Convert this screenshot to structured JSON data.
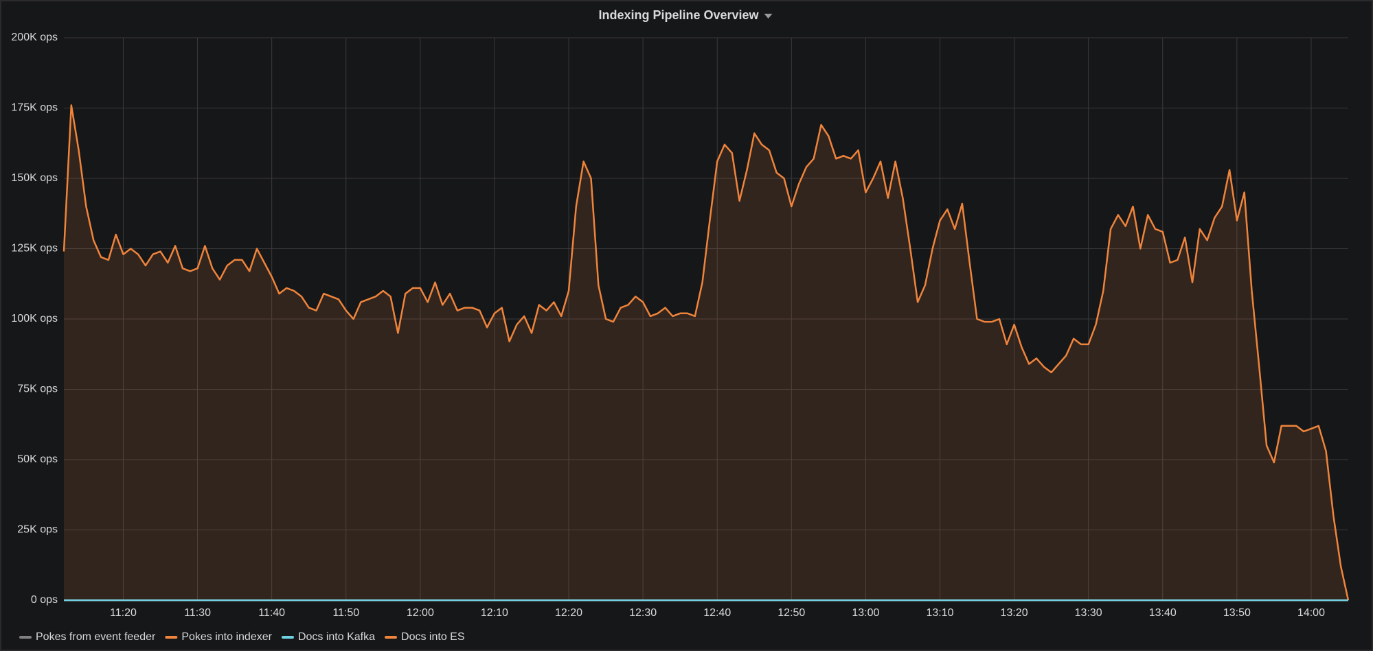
{
  "chart_data": {
    "type": "line",
    "title": "Indexing Pipeline Overview",
    "x": [
      "11:12",
      "11:13",
      "11:14",
      "11:15",
      "11:16",
      "11:17",
      "11:18",
      "11:19",
      "11:20",
      "11:21",
      "11:22",
      "11:23",
      "11:24",
      "11:25",
      "11:26",
      "11:27",
      "11:28",
      "11:29",
      "11:30",
      "11:31",
      "11:32",
      "11:33",
      "11:34",
      "11:35",
      "11:36",
      "11:37",
      "11:38",
      "11:39",
      "11:40",
      "11:41",
      "11:42",
      "11:43",
      "11:44",
      "11:45",
      "11:46",
      "11:47",
      "11:48",
      "11:49",
      "11:50",
      "11:51",
      "11:52",
      "11:53",
      "11:54",
      "11:55",
      "11:56",
      "11:57",
      "11:58",
      "11:59",
      "12:00",
      "12:01",
      "12:02",
      "12:03",
      "12:04",
      "12:05",
      "12:06",
      "12:07",
      "12:08",
      "12:09",
      "12:10",
      "12:11",
      "12:12",
      "12:13",
      "12:14",
      "12:15",
      "12:16",
      "12:17",
      "12:18",
      "12:19",
      "12:20",
      "12:21",
      "12:22",
      "12:23",
      "12:24",
      "12:25",
      "12:26",
      "12:27",
      "12:28",
      "12:29",
      "12:30",
      "12:31",
      "12:32",
      "12:33",
      "12:34",
      "12:35",
      "12:36",
      "12:37",
      "12:38",
      "12:39",
      "12:40",
      "12:41",
      "12:42",
      "12:43",
      "12:44",
      "12:45",
      "12:46",
      "12:47",
      "12:48",
      "12:49",
      "12:50",
      "12:51",
      "12:52",
      "12:53",
      "12:54",
      "12:55",
      "12:56",
      "12:57",
      "12:58",
      "12:59",
      "13:00",
      "13:01",
      "13:02",
      "13:03",
      "13:04",
      "13:05",
      "13:06",
      "13:07",
      "13:08",
      "13:09",
      "13:10",
      "13:11",
      "13:12",
      "13:13",
      "13:14",
      "13:15",
      "13:16",
      "13:17",
      "13:18",
      "13:19",
      "13:20",
      "13:21",
      "13:22",
      "13:23",
      "13:24",
      "13:25",
      "13:26",
      "13:27",
      "13:28",
      "13:29",
      "13:30",
      "13:31",
      "13:32",
      "13:33",
      "13:34",
      "13:35",
      "13:36",
      "13:37",
      "13:38",
      "13:39",
      "13:40",
      "13:41",
      "13:42",
      "13:43",
      "13:44",
      "13:45",
      "13:46",
      "13:47",
      "13:48",
      "13:49",
      "13:50",
      "13:51",
      "13:52",
      "13:53",
      "13:54",
      "13:55",
      "13:56",
      "13:57",
      "13:58",
      "13:59",
      "14:00",
      "14:01",
      "14:02",
      "14:03",
      "14:04",
      "14:05"
    ],
    "series": [
      {
        "name": "Pokes from event feeder",
        "color": "#808080",
        "values": [
          0,
          0,
          0,
          0,
          0,
          0,
          0,
          0,
          0,
          0,
          0,
          0,
          0,
          0,
          0,
          0,
          0,
          0,
          0,
          0,
          0,
          0,
          0,
          0,
          0,
          0,
          0,
          0,
          0,
          0,
          0,
          0,
          0,
          0,
          0,
          0,
          0,
          0,
          0,
          0,
          0,
          0,
          0,
          0,
          0,
          0,
          0,
          0,
          0,
          0,
          0,
          0,
          0,
          0,
          0,
          0,
          0,
          0,
          0,
          0,
          0,
          0,
          0,
          0,
          0,
          0,
          0,
          0,
          0,
          0,
          0,
          0,
          0,
          0,
          0,
          0,
          0,
          0,
          0,
          0,
          0,
          0,
          0,
          0,
          0,
          0,
          0,
          0,
          0,
          0,
          0,
          0,
          0,
          0,
          0,
          0,
          0,
          0,
          0,
          0,
          0,
          0,
          0,
          0,
          0,
          0,
          0,
          0,
          0,
          0,
          0,
          0,
          0,
          0,
          0,
          0,
          0,
          0,
          0,
          0,
          0,
          0,
          0,
          0,
          0,
          0,
          0,
          0,
          0,
          0,
          0,
          0,
          0,
          0,
          0,
          0,
          0,
          0,
          0,
          0,
          0,
          0,
          0,
          0,
          0,
          0,
          0,
          0,
          0,
          0,
          0,
          0,
          0,
          0,
          0,
          0,
          0,
          0,
          0,
          0,
          0,
          0,
          0,
          0,
          0,
          0,
          0,
          0,
          0,
          0,
          0,
          0,
          0,
          0
        ]
      },
      {
        "name": "Pokes into indexer",
        "color": "#ef843c",
        "values": [
          124000,
          176000,
          160000,
          140000,
          128000,
          122000,
          121000,
          130000,
          123000,
          125000,
          123000,
          119000,
          123000,
          124000,
          120000,
          126000,
          118000,
          117000,
          118000,
          126000,
          118000,
          114000,
          119000,
          121000,
          121000,
          117000,
          125000,
          120000,
          115000,
          109000,
          111000,
          110000,
          108000,
          104000,
          103000,
          109000,
          108000,
          107000,
          103000,
          100000,
          106000,
          107000,
          108000,
          110000,
          108000,
          95000,
          109000,
          111000,
          111000,
          106000,
          113000,
          105000,
          109000,
          103000,
          104000,
          104000,
          103000,
          97000,
          102000,
          104000,
          92000,
          98000,
          101000,
          95000,
          105000,
          103000,
          106000,
          101000,
          110000,
          140000,
          156000,
          150000,
          112000,
          100000,
          99000,
          104000,
          105000,
          108000,
          106000,
          101000,
          102000,
          104000,
          101000,
          102000,
          102000,
          101000,
          113000,
          135000,
          156000,
          162000,
          159000,
          142000,
          153000,
          166000,
          162000,
          160000,
          152000,
          150000,
          140000,
          148000,
          154000,
          157000,
          169000,
          165000,
          157000,
          158000,
          157000,
          160000,
          145000,
          150000,
          156000,
          143000,
          156000,
          143000,
          125000,
          106000,
          112000,
          125000,
          135000,
          139000,
          132000,
          141000,
          120000,
          100000,
          99000,
          99000,
          100000,
          91000,
          98000,
          90000,
          84000,
          86000,
          83000,
          81000,
          84000,
          87000,
          93000,
          91000,
          91000,
          98000,
          110000,
          132000,
          137000,
          133000,
          140000,
          125000,
          137000,
          132000,
          131000,
          120000,
          121000,
          129000,
          113000,
          132000,
          128000,
          136000,
          140000,
          153000,
          135000,
          145000,
          110000,
          83000,
          55000,
          49000,
          62000,
          62000,
          62000,
          60000,
          61000,
          62000,
          53000,
          30000,
          12000,
          0
        ]
      },
      {
        "name": "Docs into Kafka",
        "color": "#6ed0e0",
        "values": [
          0,
          0,
          0,
          0,
          0,
          0,
          0,
          0,
          0,
          0,
          0,
          0,
          0,
          0,
          0,
          0,
          0,
          0,
          0,
          0,
          0,
          0,
          0,
          0,
          0,
          0,
          0,
          0,
          0,
          0,
          0,
          0,
          0,
          0,
          0,
          0,
          0,
          0,
          0,
          0,
          0,
          0,
          0,
          0,
          0,
          0,
          0,
          0,
          0,
          0,
          0,
          0,
          0,
          0,
          0,
          0,
          0,
          0,
          0,
          0,
          0,
          0,
          0,
          0,
          0,
          0,
          0,
          0,
          0,
          0,
          0,
          0,
          0,
          0,
          0,
          0,
          0,
          0,
          0,
          0,
          0,
          0,
          0,
          0,
          0,
          0,
          0,
          0,
          0,
          0,
          0,
          0,
          0,
          0,
          0,
          0,
          0,
          0,
          0,
          0,
          0,
          0,
          0,
          0,
          0,
          0,
          0,
          0,
          0,
          0,
          0,
          0,
          0,
          0,
          0,
          0,
          0,
          0,
          0,
          0,
          0,
          0,
          0,
          0,
          0,
          0,
          0,
          0,
          0,
          0,
          0,
          0,
          0,
          0,
          0,
          0,
          0,
          0,
          0,
          0,
          0,
          0,
          0,
          0,
          0,
          0,
          0,
          0,
          0,
          0,
          0,
          0,
          0,
          0,
          0,
          0,
          0,
          0,
          0,
          0,
          0,
          0,
          0,
          0,
          0,
          0,
          0,
          0,
          0,
          0,
          0,
          0,
          0,
          0
        ]
      },
      {
        "name": "Docs into ES",
        "color": "#ef843c",
        "values": [
          0,
          0,
          0,
          0,
          0,
          0,
          0,
          0,
          0,
          0,
          0,
          0,
          0,
          0,
          0,
          0,
          0,
          0,
          0,
          0,
          0,
          0,
          0,
          0,
          0,
          0,
          0,
          0,
          0,
          0,
          0,
          0,
          0,
          0,
          0,
          0,
          0,
          0,
          0,
          0,
          0,
          0,
          0,
          0,
          0,
          0,
          0,
          0,
          0,
          0,
          0,
          0,
          0,
          0,
          0,
          0,
          0,
          0,
          0,
          0,
          0,
          0,
          0,
          0,
          0,
          0,
          0,
          0,
          0,
          0,
          0,
          0,
          0,
          0,
          0,
          0,
          0,
          0,
          0,
          0,
          0,
          0,
          0,
          0,
          0,
          0,
          0,
          0,
          0,
          0,
          0,
          0,
          0,
          0,
          0,
          0,
          0,
          0,
          0,
          0,
          0,
          0,
          0,
          0,
          0,
          0,
          0,
          0,
          0,
          0,
          0,
          0,
          0,
          0,
          0,
          0,
          0,
          0,
          0,
          0,
          0,
          0,
          0,
          0,
          0,
          0,
          0,
          0,
          0,
          0,
          0,
          0,
          0,
          0,
          0,
          0,
          0,
          0,
          0,
          0,
          0,
          0,
          0,
          0,
          0,
          0,
          0,
          0,
          0,
          0,
          0,
          0,
          0,
          0,
          0,
          0,
          0,
          0,
          0,
          0,
          0,
          0,
          0,
          0,
          0,
          0,
          0,
          0,
          0,
          0,
          0,
          0,
          0,
          0
        ]
      }
    ],
    "xlim": [
      "11:12",
      "14:05"
    ],
    "xticks": [
      "11:20",
      "11:30",
      "11:40",
      "11:50",
      "12:00",
      "12:10",
      "12:20",
      "12:30",
      "12:40",
      "12:50",
      "13:00",
      "13:10",
      "13:20",
      "13:30",
      "13:40",
      "13:50",
      "14:00"
    ],
    "ylim": [
      0,
      200000
    ],
    "yticks": [
      {
        "value": 0,
        "label": "0 ops"
      },
      {
        "value": 25000,
        "label": "25K ops"
      },
      {
        "value": 50000,
        "label": "50K ops"
      },
      {
        "value": 75000,
        "label": "75K ops"
      },
      {
        "value": 100000,
        "label": "100K ops"
      },
      {
        "value": 125000,
        "label": "125K ops"
      },
      {
        "value": 150000,
        "label": "150K ops"
      },
      {
        "value": 175000,
        "label": "175K ops"
      },
      {
        "value": 200000,
        "label": "200K ops"
      }
    ],
    "grid": true,
    "fill": true,
    "legend": "bottom"
  }
}
